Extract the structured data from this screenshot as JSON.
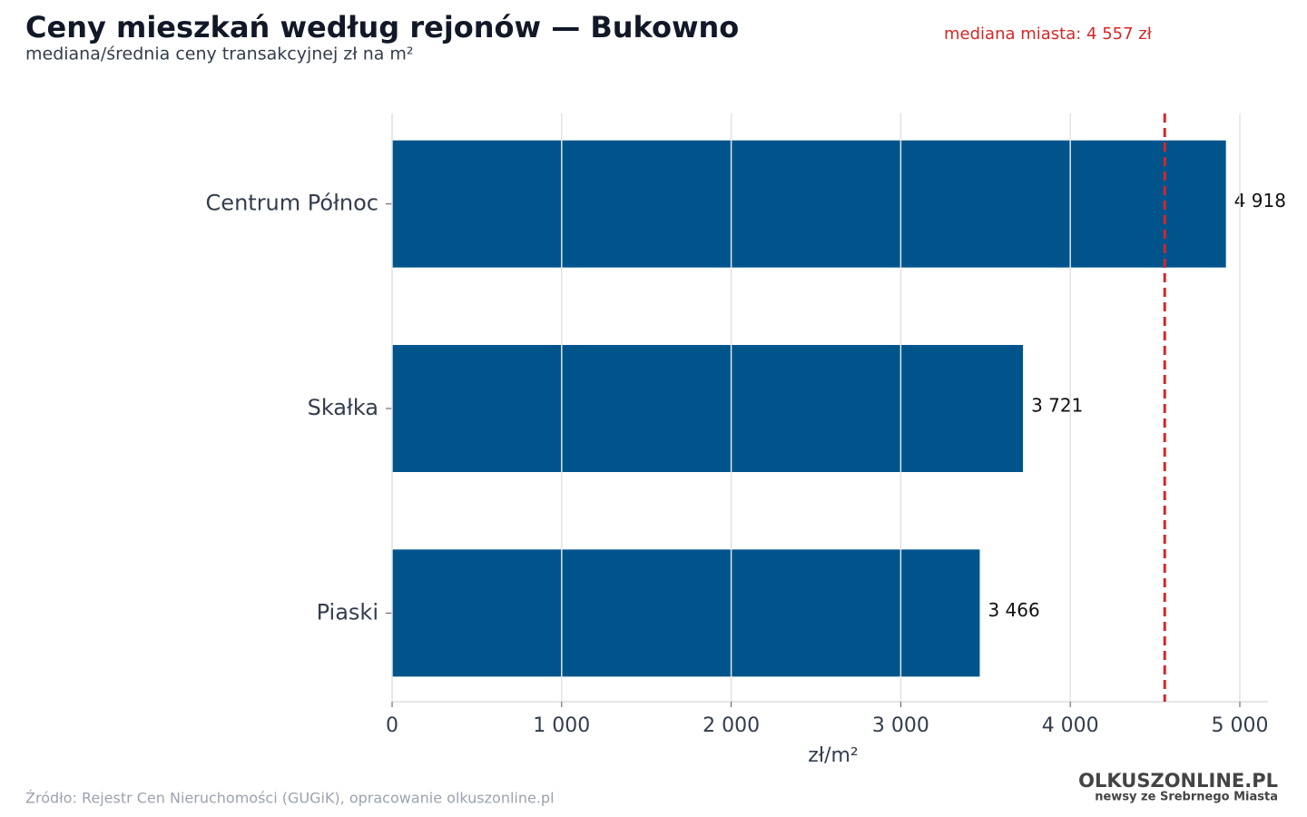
{
  "chart_data": {
    "type": "bar",
    "orientation": "horizontal",
    "title": "Ceny mieszkań według rejonów — Bukowno",
    "subtitle": "mediana/średnia ceny transakcyjnej zł na m²",
    "xlabel": "zł/m²",
    "categories": [
      "Centrum Północ",
      "Skałka",
      "Piaski"
    ],
    "values": [
      4918,
      3721,
      3466
    ],
    "value_labels": [
      "4 918",
      "3 721",
      "3 466"
    ],
    "color": "#00548c",
    "xlim": [
      0,
      5166
    ],
    "xticks": [
      0,
      {
        "value": 1000,
        "label": "1 000"
      },
      {
        "value": 2000,
        "label": "2 000"
      },
      {
        "value": 3000,
        "label": "3 000"
      },
      {
        "value": 4000,
        "label": "4 000"
      },
      {
        "value": 5000,
        "label": "5 000"
      }
    ],
    "grid": true,
    "reference_line": {
      "value": 4557,
      "label": "mediana miasta: 4 557 zł",
      "color": "#d62728"
    },
    "source": "Źródło: Rejestr Cen Nieruchomości (GUGiK), opracowanie olkuszonline.pl",
    "logo": {
      "name": "OLKUSZONLINE.PL",
      "tagline": "newsy ze Srebrnego Miasta"
    }
  }
}
